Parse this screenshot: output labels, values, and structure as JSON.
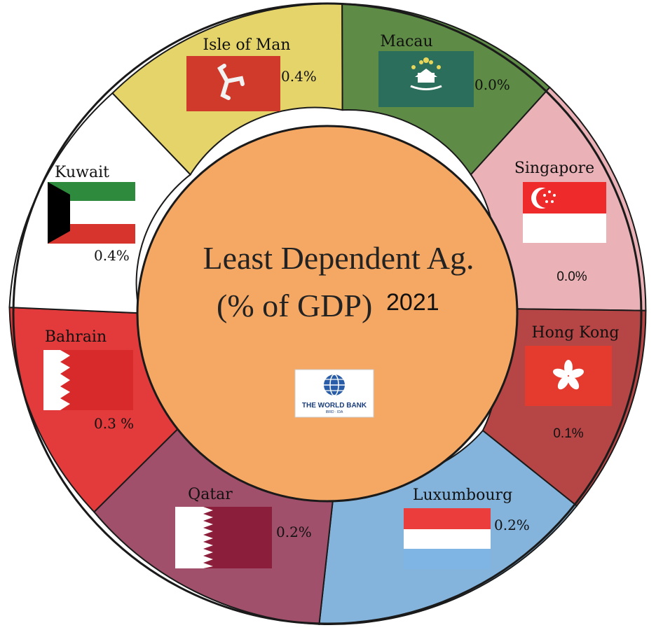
{
  "title": {
    "line1": "Least Dependent Ag.",
    "line2": "(% of GDP)",
    "year": "2021"
  },
  "logo": {
    "name": "THE WORLD BANK",
    "sub": "IBRD · IDA",
    "icon": "globe-icon"
  },
  "segments": [
    {
      "name": "Isle of Man",
      "value": "0.4%",
      "color": "#e5d46a",
      "flag": "isle-of-man-flag"
    },
    {
      "name": "Macau",
      "value": "0.0%",
      "color": "#5e8b45",
      "flag": "macau-flag"
    },
    {
      "name": "Singapore",
      "value": "0.0%",
      "color": "#eab1b6",
      "flag": "singapore-flag"
    },
    {
      "name": "Hong Kong",
      "value": "0.1%",
      "color": "#b64545",
      "flag": "hong-kong-flag"
    },
    {
      "name": "Luxumbourg",
      "value": "0.2%",
      "color": "#84b4dc",
      "flag": "luxembourg-flag"
    },
    {
      "name": "Qatar",
      "value": "0.2%",
      "color": "#a0506a",
      "flag": "qatar-flag"
    },
    {
      "name": "Bahrain",
      "value": "0.3 %",
      "color": "#e33b3b",
      "flag": "bahrain-flag"
    },
    {
      "name": "Kuwait",
      "value": "0.4%",
      "color": "#ffffff",
      "flag": "kuwait-flag"
    }
  ],
  "colors": {
    "center": "#f5a863",
    "outline": "#1a1a1a"
  }
}
